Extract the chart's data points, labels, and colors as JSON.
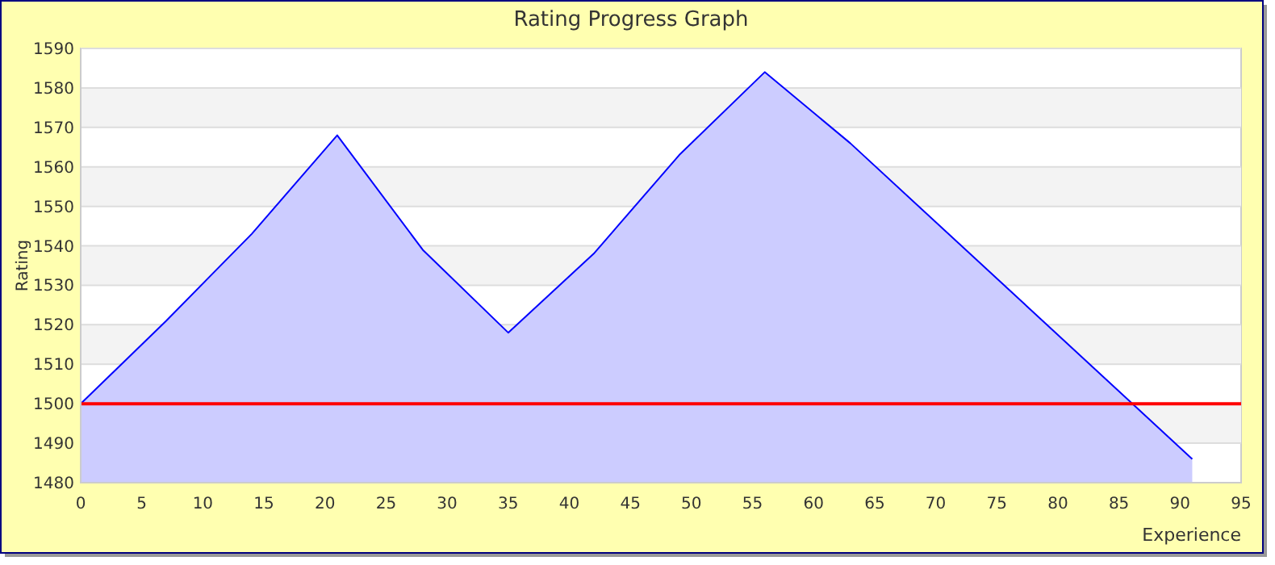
{
  "chart_data": {
    "type": "area",
    "title": "Rating Progress Graph",
    "xlabel": "Experience",
    "ylabel": "Rating",
    "x": [
      0,
      7,
      14,
      21,
      28,
      35,
      42,
      49,
      56,
      63,
      91
    ],
    "series": [
      {
        "color": "#0000ff",
        "values": [
          1500,
          1521,
          1543,
          1568,
          1539,
          1518,
          1538,
          1563,
          1584,
          1566,
          1486
        ]
      }
    ],
    "xlim": [
      0,
      95
    ],
    "xticks": [
      0,
      5,
      10,
      15,
      20,
      25,
      30,
      35,
      40,
      45,
      50,
      55,
      60,
      65,
      70,
      75,
      80,
      85,
      90,
      95
    ],
    "ylim": [
      1480,
      1590
    ],
    "yticks": [
      1480,
      1490,
      1500,
      1510,
      1520,
      1530,
      1540,
      1550,
      1560,
      1570,
      1580,
      1590
    ],
    "ref_lines": [
      {
        "axis": "y",
        "value": 1500,
        "color": "#ff0000"
      }
    ],
    "grid": "y"
  }
}
